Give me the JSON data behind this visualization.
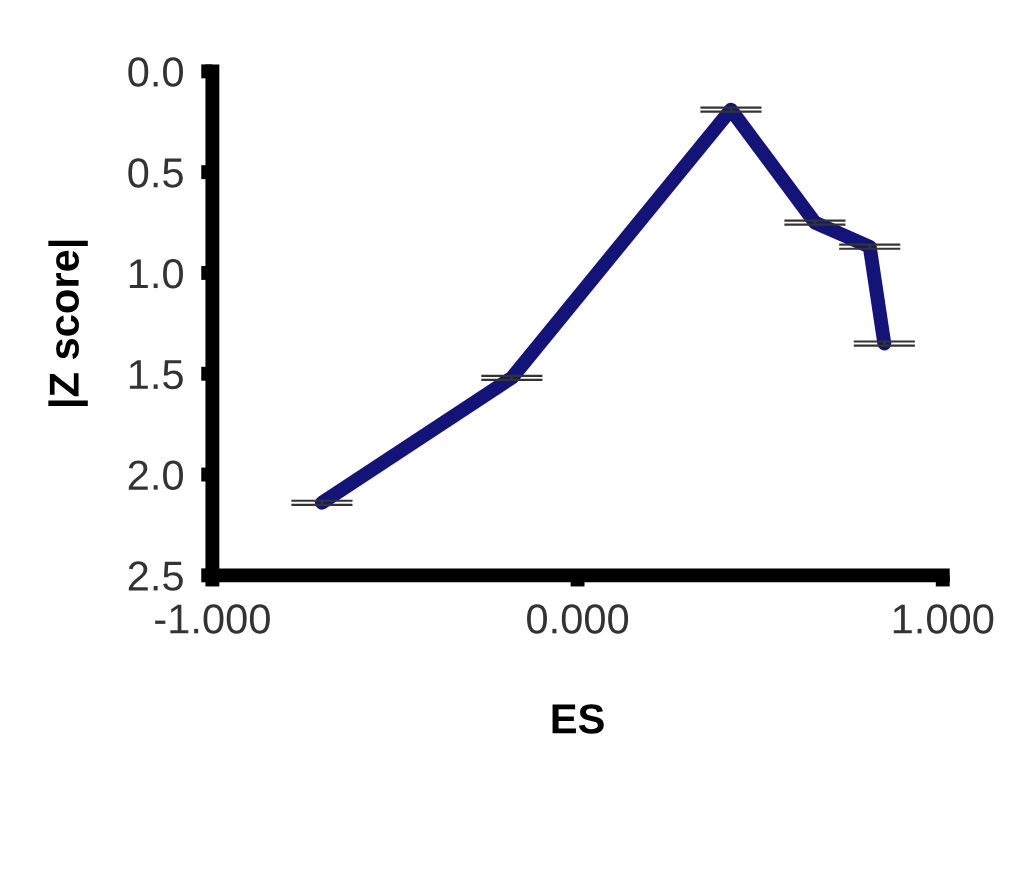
{
  "chart_data": {
    "type": "line",
    "xlabel": "ES",
    "ylabel": "|Z score|",
    "x": [
      -0.7,
      -0.18,
      0.42,
      0.65,
      0.8,
      0.84
    ],
    "series": [
      {
        "color": "#141478",
        "values": [
          2.14,
          1.52,
          0.19,
          0.75,
          0.87,
          1.35
        ],
        "errors": [
          0.01,
          0.01,
          0.01,
          0.01,
          0.01,
          0.01
        ]
      }
    ],
    "xlim": [
      -1.0,
      1.0
    ],
    "xticks": [
      {
        "value": -1.0,
        "label": "-1.000"
      },
      {
        "value": 0.0,
        "label": "0.000"
      },
      {
        "value": 1.0,
        "label": "1.000"
      }
    ],
    "ylim": [
      2.5,
      0.0
    ],
    "yticks": [
      {
        "value": 0.0,
        "label": "0.0"
      },
      {
        "value": 0.5,
        "label": "0.5"
      },
      {
        "value": 1.0,
        "label": "1.0"
      },
      {
        "value": 1.5,
        "label": "1.5"
      },
      {
        "value": 2.0,
        "label": "2.0"
      },
      {
        "value": 2.5,
        "label": "2.5"
      }
    ],
    "grid": false,
    "legend": false,
    "marker": "none",
    "line_style": "solid"
  }
}
